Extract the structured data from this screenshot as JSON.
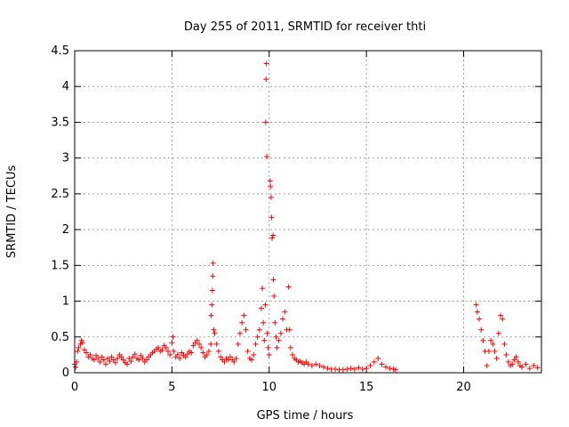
{
  "chart_data": {
    "type": "scatter",
    "title": "Day 255 of 2011, SRMTID for receiver thti",
    "xlabel": "GPS time / hours",
    "ylabel": "SRMTID / TECUs",
    "xlim": [
      0,
      24
    ],
    "ylim": [
      0,
      4.5
    ],
    "grid": true,
    "marker": "+",
    "color": "#ff0000",
    "x_ticks": [
      0,
      5,
      10,
      15,
      20
    ],
    "x_tick_labels": [
      "0",
      "5",
      "10",
      "15",
      "20"
    ],
    "y_ticks": [
      0,
      0.5,
      1,
      1.5,
      2,
      2.5,
      3,
      3.5,
      4,
      4.5
    ],
    "y_tick_labels": [
      "0",
      "0.5",
      "1",
      "1.5",
      "2",
      "2.5",
      "3",
      "3.5",
      "4",
      "4.5"
    ],
    "series": [
      {
        "name": "SRMTID",
        "points": [
          [
            0.0,
            0.12
          ],
          [
            0.05,
            0.08
          ],
          [
            0.1,
            0.15
          ],
          [
            0.15,
            0.3
          ],
          [
            0.2,
            0.35
          ],
          [
            0.3,
            0.4
          ],
          [
            0.35,
            0.45
          ],
          [
            0.4,
            0.42
          ],
          [
            0.5,
            0.32
          ],
          [
            0.6,
            0.28
          ],
          [
            0.7,
            0.22
          ],
          [
            0.8,
            0.25
          ],
          [
            0.9,
            0.2
          ],
          [
            1.0,
            0.18
          ],
          [
            1.1,
            0.24
          ],
          [
            1.2,
            0.2
          ],
          [
            1.3,
            0.15
          ],
          [
            1.4,
            0.22
          ],
          [
            1.5,
            0.18
          ],
          [
            1.6,
            0.12
          ],
          [
            1.7,
            0.2
          ],
          [
            1.8,
            0.16
          ],
          [
            1.9,
            0.22
          ],
          [
            2.0,
            0.18
          ],
          [
            2.1,
            0.14
          ],
          [
            2.2,
            0.2
          ],
          [
            2.3,
            0.25
          ],
          [
            2.4,
            0.22
          ],
          [
            2.5,
            0.18
          ],
          [
            2.6,
            0.14
          ],
          [
            2.7,
            0.12
          ],
          [
            2.8,
            0.2
          ],
          [
            2.9,
            0.16
          ],
          [
            3.0,
            0.22
          ],
          [
            3.1,
            0.26
          ],
          [
            3.2,
            0.2
          ],
          [
            3.3,
            0.18
          ],
          [
            3.4,
            0.24
          ],
          [
            3.5,
            0.2
          ],
          [
            3.6,
            0.15
          ],
          [
            3.7,
            0.18
          ],
          [
            3.8,
            0.22
          ],
          [
            3.9,
            0.25
          ],
          [
            4.0,
            0.28
          ],
          [
            4.1,
            0.3
          ],
          [
            4.2,
            0.33
          ],
          [
            4.3,
            0.35
          ],
          [
            4.4,
            0.3
          ],
          [
            4.5,
            0.32
          ],
          [
            4.6,
            0.38
          ],
          [
            4.7,
            0.35
          ],
          [
            4.8,
            0.3
          ],
          [
            4.9,
            0.25
          ],
          [
            5.0,
            0.42
          ],
          [
            5.05,
            0.5
          ],
          [
            5.1,
            0.3
          ],
          [
            5.2,
            0.22
          ],
          [
            5.3,
            0.25
          ],
          [
            5.4,
            0.2
          ],
          [
            5.5,
            0.28
          ],
          [
            5.6,
            0.24
          ],
          [
            5.7,
            0.22
          ],
          [
            5.8,
            0.26
          ],
          [
            5.9,
            0.3
          ],
          [
            6.0,
            0.28
          ],
          [
            6.1,
            0.38
          ],
          [
            6.2,
            0.42
          ],
          [
            6.3,
            0.45
          ],
          [
            6.4,
            0.4
          ],
          [
            6.5,
            0.35
          ],
          [
            6.6,
            0.28
          ],
          [
            6.7,
            0.22
          ],
          [
            6.8,
            0.25
          ],
          [
            6.9,
            0.3
          ],
          [
            7.0,
            0.4
          ],
          [
            7.02,
            0.8
          ],
          [
            7.05,
            0.95
          ],
          [
            7.08,
            1.15
          ],
          [
            7.1,
            1.35
          ],
          [
            7.12,
            1.53
          ],
          [
            7.15,
            0.6
          ],
          [
            7.2,
            0.55
          ],
          [
            7.3,
            0.4
          ],
          [
            7.4,
            0.3
          ],
          [
            7.5,
            0.22
          ],
          [
            7.6,
            0.18
          ],
          [
            7.7,
            0.15
          ],
          [
            7.8,
            0.2
          ],
          [
            7.9,
            0.18
          ],
          [
            8.0,
            0.22
          ],
          [
            8.1,
            0.18
          ],
          [
            8.2,
            0.15
          ],
          [
            8.3,
            0.2
          ],
          [
            8.4,
            0.4
          ],
          [
            8.5,
            0.55
          ],
          [
            8.6,
            0.7
          ],
          [
            8.7,
            0.8
          ],
          [
            8.8,
            0.6
          ],
          [
            8.9,
            0.3
          ],
          [
            9.0,
            0.2
          ],
          [
            9.1,
            0.18
          ],
          [
            9.2,
            0.25
          ],
          [
            9.3,
            0.4
          ],
          [
            9.4,
            0.5
          ],
          [
            9.5,
            0.6
          ],
          [
            9.6,
            0.9
          ],
          [
            9.65,
            1.18
          ],
          [
            9.7,
            0.7
          ],
          [
            9.75,
            0.45
          ],
          [
            9.8,
            0.95
          ],
          [
            9.82,
            3.5
          ],
          [
            9.84,
            4.1
          ],
          [
            9.86,
            4.32
          ],
          [
            9.88,
            3.02
          ],
          [
            9.9,
            0.55
          ],
          [
            9.95,
            0.35
          ],
          [
            10.0,
            0.25
          ],
          [
            10.05,
            2.68
          ],
          [
            10.07,
            2.6
          ],
          [
            10.1,
            2.45
          ],
          [
            10.12,
            2.17
          ],
          [
            10.15,
            1.88
          ],
          [
            10.2,
            1.92
          ],
          [
            10.22,
            1.3
          ],
          [
            10.25,
            1.07
          ],
          [
            10.3,
            0.7
          ],
          [
            10.35,
            0.5
          ],
          [
            10.4,
            0.35
          ],
          [
            10.5,
            0.45
          ],
          [
            10.6,
            0.55
          ],
          [
            10.7,
            0.75
          ],
          [
            10.8,
            0.85
          ],
          [
            10.9,
            0.6
          ],
          [
            11.0,
            1.2
          ],
          [
            11.05,
            0.6
          ],
          [
            11.1,
            0.35
          ],
          [
            11.2,
            0.25
          ],
          [
            11.3,
            0.2
          ],
          [
            11.4,
            0.18
          ],
          [
            11.5,
            0.15
          ],
          [
            11.6,
            0.16
          ],
          [
            11.7,
            0.14
          ],
          [
            11.8,
            0.12
          ],
          [
            11.9,
            0.15
          ],
          [
            12.0,
            0.12
          ],
          [
            12.2,
            0.1
          ],
          [
            12.4,
            0.12
          ],
          [
            12.6,
            0.1
          ],
          [
            12.8,
            0.08
          ],
          [
            13.0,
            0.06
          ],
          [
            13.2,
            0.05
          ],
          [
            13.4,
            0.05
          ],
          [
            13.6,
            0.04
          ],
          [
            13.8,
            0.04
          ],
          [
            14.0,
            0.05
          ],
          [
            14.2,
            0.06
          ],
          [
            14.4,
            0.05
          ],
          [
            14.6,
            0.07
          ],
          [
            14.8,
            0.05
          ],
          [
            15.0,
            0.06
          ],
          [
            15.2,
            0.1
          ],
          [
            15.4,
            0.15
          ],
          [
            15.6,
            0.2
          ],
          [
            15.8,
            0.12
          ],
          [
            16.0,
            0.08
          ],
          [
            16.2,
            0.06
          ],
          [
            16.4,
            0.05
          ],
          [
            16.5,
            0.04
          ],
          [
            20.65,
            0.95
          ],
          [
            20.7,
            0.85
          ],
          [
            20.8,
            0.75
          ],
          [
            20.9,
            0.6
          ],
          [
            21.0,
            0.45
          ],
          [
            21.1,
            0.3
          ],
          [
            21.2,
            0.1
          ],
          [
            21.3,
            0.3
          ],
          [
            21.4,
            0.45
          ],
          [
            21.5,
            0.4
          ],
          [
            21.6,
            0.3
          ],
          [
            21.7,
            0.2
          ],
          [
            21.8,
            0.55
          ],
          [
            21.9,
            0.8
          ],
          [
            22.0,
            0.75
          ],
          [
            22.1,
            0.4
          ],
          [
            22.2,
            0.25
          ],
          [
            22.3,
            0.15
          ],
          [
            22.4,
            0.1
          ],
          [
            22.5,
            0.12
          ],
          [
            22.6,
            0.18
          ],
          [
            22.7,
            0.22
          ],
          [
            22.8,
            0.15
          ],
          [
            22.9,
            0.1
          ],
          [
            23.0,
            0.08
          ],
          [
            23.2,
            0.12
          ],
          [
            23.4,
            0.06
          ],
          [
            23.6,
            0.1
          ],
          [
            23.8,
            0.07
          ]
        ]
      }
    ]
  }
}
